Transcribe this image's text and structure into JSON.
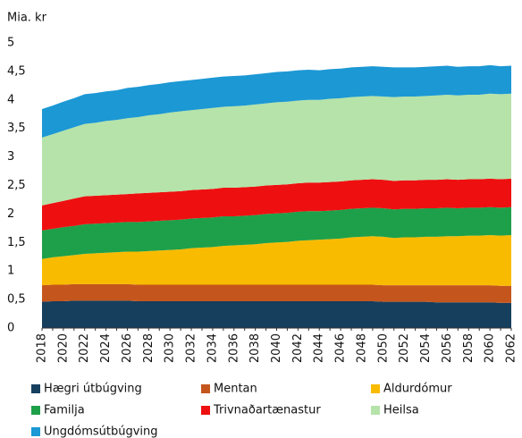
{
  "chart_data": {
    "type": "stacked_area",
    "y_label": "Mia. kr",
    "categories": [
      "2018",
      null,
      "2020",
      null,
      "2022",
      null,
      "2024",
      null,
      "2026",
      null,
      "2028",
      null,
      "2030",
      null,
      "2032",
      null,
      "2034",
      null,
      "2036",
      null,
      "2038",
      null,
      "2040",
      null,
      "2042",
      null,
      "2044",
      null,
      "2046",
      null,
      "2048",
      null,
      "2050",
      null,
      "2052",
      null,
      "2054",
      null,
      "2056",
      null,
      "2058",
      null,
      "2060",
      null,
      "2062"
    ],
    "ylim": [
      0,
      5
    ],
    "yticks": [
      0,
      {
        "value": 0.5,
        "label": "0,5"
      },
      1,
      {
        "value": 1.5,
        "label": "1,5"
      },
      2,
      {
        "value": 2.5,
        "label": "2,5"
      },
      3,
      {
        "value": 3.5,
        "label": "3,5"
      },
      4,
      {
        "value": 4.5,
        "label": "4,5"
      },
      5
    ],
    "series": [
      {
        "name": "Hægri útbúgving",
        "color": "#163f5e",
        "values": [
          0.46,
          0.47,
          0.47,
          0.48,
          0.48,
          0.48,
          0.48,
          0.48,
          0.48,
          0.47,
          0.47,
          0.47,
          0.47,
          0.47,
          0.47,
          0.47,
          0.47,
          0.47,
          0.47,
          0.47,
          0.47,
          0.47,
          0.47,
          0.47,
          0.47,
          0.47,
          0.47,
          0.47,
          0.47,
          0.47,
          0.47,
          0.47,
          0.46,
          0.46,
          0.46,
          0.46,
          0.46,
          0.45,
          0.45,
          0.45,
          0.45,
          0.45,
          0.45,
          0.44,
          0.44
        ]
      },
      {
        "name": "Mentan",
        "color": "#c4561d",
        "values": [
          0.29,
          0.29,
          0.29,
          0.29,
          0.29,
          0.29,
          0.29,
          0.29,
          0.29,
          0.29,
          0.29,
          0.29,
          0.29,
          0.29,
          0.29,
          0.29,
          0.29,
          0.29,
          0.29,
          0.29,
          0.29,
          0.29,
          0.29,
          0.29,
          0.29,
          0.29,
          0.29,
          0.29,
          0.29,
          0.29,
          0.29,
          0.29,
          0.29,
          0.29,
          0.29,
          0.29,
          0.29,
          0.3,
          0.3,
          0.3,
          0.3,
          0.3,
          0.3,
          0.3,
          0.3
        ]
      },
      {
        "name": "Aldurdómur",
        "color": "#f9bb00",
        "values": [
          0.46,
          0.48,
          0.5,
          0.51,
          0.53,
          0.54,
          0.55,
          0.56,
          0.57,
          0.58,
          0.59,
          0.6,
          0.61,
          0.62,
          0.64,
          0.65,
          0.66,
          0.68,
          0.69,
          0.7,
          0.71,
          0.73,
          0.74,
          0.75,
          0.77,
          0.78,
          0.79,
          0.8,
          0.81,
          0.83,
          0.84,
          0.85,
          0.85,
          0.83,
          0.84,
          0.84,
          0.85,
          0.85,
          0.86,
          0.86,
          0.87,
          0.87,
          0.88,
          0.88,
          0.89
        ]
      },
      {
        "name": "Familja",
        "color": "#1ea04a",
        "values": [
          0.5,
          0.5,
          0.51,
          0.51,
          0.52,
          0.52,
          0.52,
          0.52,
          0.52,
          0.52,
          0.52,
          0.52,
          0.52,
          0.52,
          0.52,
          0.52,
          0.52,
          0.52,
          0.51,
          0.51,
          0.51,
          0.51,
          0.51,
          0.51,
          0.51,
          0.51,
          0.5,
          0.5,
          0.5,
          0.5,
          0.5,
          0.5,
          0.5,
          0.5,
          0.5,
          0.5,
          0.5,
          0.5,
          0.5,
          0.49,
          0.49,
          0.49,
          0.49,
          0.49,
          0.49
        ]
      },
      {
        "name": "Trivnaðartænastur",
        "color": "#ee1010",
        "values": [
          0.44,
          0.45,
          0.46,
          0.48,
          0.49,
          0.49,
          0.49,
          0.49,
          0.49,
          0.5,
          0.5,
          0.5,
          0.5,
          0.5,
          0.5,
          0.5,
          0.5,
          0.5,
          0.5,
          0.5,
          0.5,
          0.5,
          0.5,
          0.5,
          0.5,
          0.5,
          0.5,
          0.5,
          0.5,
          0.5,
          0.5,
          0.5,
          0.5,
          0.5,
          0.5,
          0.5,
          0.5,
          0.5,
          0.5,
          0.5,
          0.5,
          0.5,
          0.5,
          0.5,
          0.5
        ]
      },
      {
        "name": "Heilsa",
        "color": "#b5e3a9",
        "values": [
          1.19,
          1.21,
          1.23,
          1.25,
          1.27,
          1.28,
          1.3,
          1.31,
          1.33,
          1.34,
          1.36,
          1.37,
          1.39,
          1.4,
          1.4,
          1.41,
          1.42,
          1.42,
          1.43,
          1.43,
          1.44,
          1.44,
          1.45,
          1.45,
          1.45,
          1.45,
          1.45,
          1.46,
          1.46,
          1.46,
          1.46,
          1.46,
          1.46,
          1.47,
          1.47,
          1.47,
          1.47,
          1.48,
          1.48,
          1.48,
          1.48,
          1.48,
          1.49,
          1.49,
          1.49
        ]
      },
      {
        "name": "Ungdómsútbúgving",
        "color": "#1c98d4",
        "values": [
          0.5,
          0.5,
          0.51,
          0.51,
          0.52,
          0.52,
          0.52,
          0.52,
          0.53,
          0.53,
          0.53,
          0.53,
          0.53,
          0.53,
          0.53,
          0.53,
          0.53,
          0.53,
          0.53,
          0.53,
          0.53,
          0.53,
          0.53,
          0.53,
          0.53,
          0.53,
          0.52,
          0.52,
          0.52,
          0.52,
          0.52,
          0.52,
          0.52,
          0.52,
          0.51,
          0.51,
          0.51,
          0.51,
          0.51,
          0.5,
          0.5,
          0.5,
          0.5,
          0.49,
          0.49
        ]
      }
    ]
  }
}
